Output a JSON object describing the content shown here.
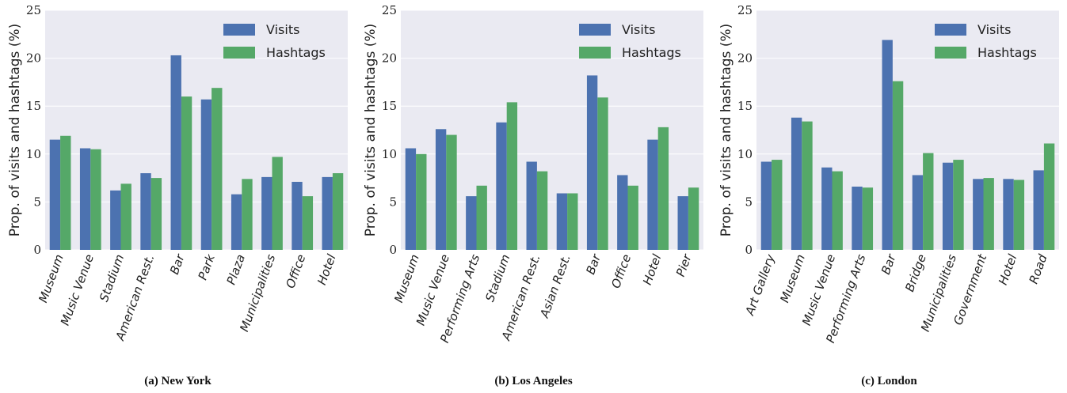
{
  "colors": {
    "visits": "#4c72b0",
    "hashtags": "#55a868",
    "plot_bg": "#eaeaf2",
    "grid": "#ffffff"
  },
  "chart_data": [
    {
      "type": "bar",
      "caption": "(a) New York",
      "ylabel": "Prop. of visits and hashtags (%)",
      "ylim": [
        0,
        25
      ],
      "yticks": [
        0,
        5,
        10,
        15,
        20,
        25
      ],
      "grid": true,
      "legend": "top-right",
      "categories": [
        "Museum",
        "Music Venue",
        "Stadium",
        "American Rest.",
        "Bar",
        "Park",
        "Plaza",
        "Municipalities",
        "Office",
        "Hotel"
      ],
      "series": [
        {
          "name": "Visits",
          "values": [
            11.5,
            10.6,
            6.2,
            8.0,
            20.3,
            15.7,
            5.8,
            7.6,
            7.1,
            7.6
          ]
        },
        {
          "name": "Hashtags",
          "values": [
            11.9,
            10.5,
            6.9,
            7.5,
            16.0,
            16.9,
            7.4,
            9.7,
            5.6,
            8.0
          ]
        }
      ]
    },
    {
      "type": "bar",
      "caption": "(b) Los Angeles",
      "ylabel": "Prop. of visits and hashtags (%)",
      "ylim": [
        0,
        25
      ],
      "yticks": [
        0,
        5,
        10,
        15,
        20,
        25
      ],
      "grid": true,
      "legend": "top-right",
      "categories": [
        "Museum",
        "Music Venue",
        "Performing Arts",
        "Stadium",
        "American Rest.",
        "Asian Rest.",
        "Bar",
        "Office",
        "Hotel",
        "Pier"
      ],
      "series": [
        {
          "name": "Visits",
          "values": [
            10.6,
            12.6,
            5.6,
            13.3,
            9.2,
            5.9,
            18.2,
            7.8,
            11.5,
            5.6
          ]
        },
        {
          "name": "Hashtags",
          "values": [
            10.0,
            12.0,
            6.7,
            15.4,
            8.2,
            5.9,
            15.9,
            6.7,
            12.8,
            6.5
          ]
        }
      ]
    },
    {
      "type": "bar",
      "caption": "(c) London",
      "ylabel": "Prop. of visits and hashtags (%)",
      "ylim": [
        0,
        25
      ],
      "yticks": [
        0,
        5,
        10,
        15,
        20,
        25
      ],
      "grid": true,
      "legend": "top-right",
      "categories": [
        "Art Gallery",
        "Museum",
        "Music Venue",
        "Performing Arts",
        "Bar",
        "Bridge",
        "Municipalities",
        "Government",
        "Hotel",
        "Road"
      ],
      "series": [
        {
          "name": "Visits",
          "values": [
            9.2,
            13.8,
            8.6,
            6.6,
            21.9,
            7.8,
            9.1,
            7.4,
            7.4,
            8.3
          ]
        },
        {
          "name": "Hashtags",
          "values": [
            9.4,
            13.4,
            8.2,
            6.5,
            17.6,
            10.1,
            9.4,
            7.5,
            7.3,
            11.1
          ]
        }
      ]
    }
  ]
}
